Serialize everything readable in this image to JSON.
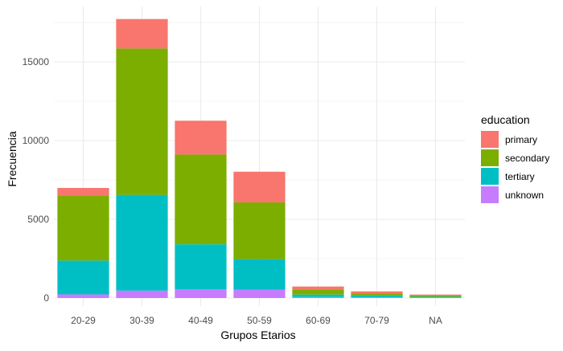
{
  "chart_data": {
    "type": "bar",
    "stacked": true,
    "categories": [
      "20-29",
      "30-39",
      "40-49",
      "50-59",
      "60-69",
      "70-79",
      "NA"
    ],
    "series": [
      {
        "name": "primary",
        "color": "#F8766D",
        "values": [
          510,
          1870,
          2150,
          1950,
          220,
          120,
          60
        ]
      },
      {
        "name": "secondary",
        "color": "#7CAE00",
        "values": [
          4100,
          9300,
          5700,
          3600,
          290,
          140,
          80
        ]
      },
      {
        "name": "tertiary",
        "color": "#00BFC4",
        "values": [
          2150,
          6080,
          2850,
          1950,
          160,
          120,
          50
        ]
      },
      {
        "name": "unknown",
        "color": "#C77CFF",
        "values": [
          230,
          470,
          560,
          520,
          60,
          40,
          30
        ]
      }
    ],
    "stack_order_bottom_to_top": [
      "unknown",
      "tertiary",
      "secondary",
      "primary"
    ],
    "xlabel": "Grupos Etarios",
    "ylabel": "Frecuencia",
    "ylim": [
      0,
      18000
    ],
    "yticks": [
      0,
      5000,
      10000,
      15000
    ],
    "ytick_labels": [
      "0",
      "5000",
      "10000",
      "15000"
    ],
    "grid": true,
    "grid_color": "#EBEBEB",
    "legend": {
      "title": "education",
      "position": "right",
      "entries": [
        "primary",
        "secondary",
        "tertiary",
        "unknown"
      ]
    }
  }
}
